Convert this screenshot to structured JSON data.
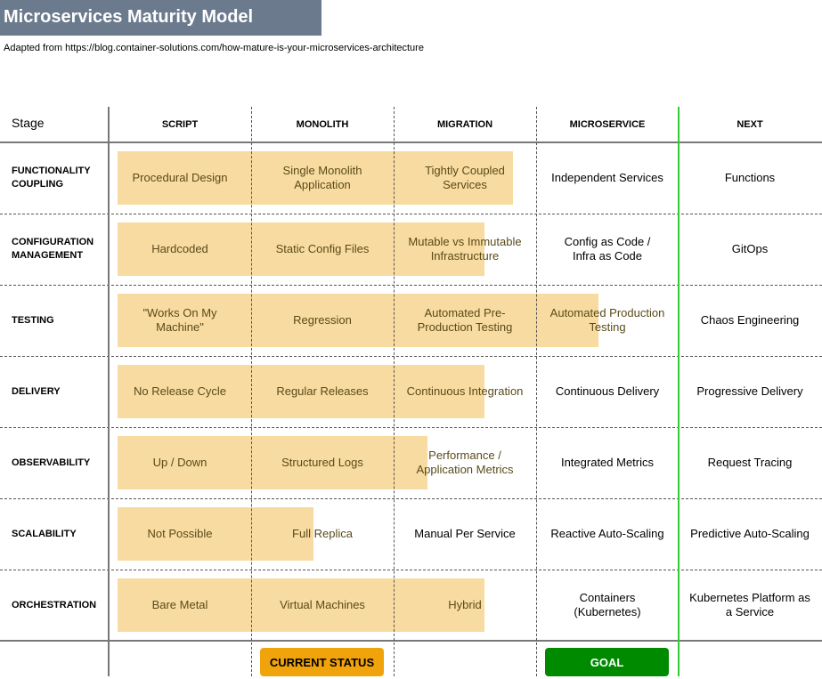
{
  "title": "Microservices Maturity Model",
  "subtitle": "Adapted from https://blog.container-solutions.com/how-mature-is-your-microservices-architecture",
  "stage_header": "Stage",
  "columns": [
    "SCRIPT",
    "MONOLITH",
    "MIGRATION",
    "MICROSERVICE",
    "NEXT"
  ],
  "rows": [
    {
      "label": "FUNCTIONALITY\nCOUPLING",
      "cells": [
        "Procedural Design",
        "Single Monolith\nApplication",
        "Tightly Coupled\nServices",
        "Independent Services",
        "Functions"
      ]
    },
    {
      "label": "CONFIGURATION\nMANAGEMENT",
      "cells": [
        "Hardcoded",
        "Static Config Files",
        "Mutable vs Immutable\nInfrastructure",
        "Config as Code /\nInfra as Code",
        "GitOps"
      ]
    },
    {
      "label": "TESTING",
      "cells": [
        "\"Works On My\nMachine\"",
        "Regression",
        "Automated Pre-\nProduction Testing",
        "Automated Production\nTesting",
        "Chaos Engineering"
      ]
    },
    {
      "label": "DELIVERY",
      "cells": [
        "No Release Cycle",
        "Regular Releases",
        "Continuous Integration",
        "Continuous Delivery",
        "Progressive Delivery"
      ]
    },
    {
      "label": "OBSERVABILITY",
      "cells": [
        "Up / Down",
        "Structured Logs",
        "Performance /\nApplication Metrics",
        "Integrated Metrics",
        "Request Tracing"
      ]
    },
    {
      "label": "SCALABILITY",
      "cells": [
        "Not Possible",
        "Full Replica",
        "Manual Per Service",
        "Reactive Auto-Scaling",
        "Predictive Auto-Scaling"
      ]
    },
    {
      "label": "ORCHESTRATION",
      "cells": [
        "Bare Metal",
        "Virtual Machines",
        "Hybrid",
        "Containers\n(Kubernetes)",
        "Kubernetes Platform as\na Service"
      ]
    }
  ],
  "current_status": [
    2.9,
    2.7,
    3.5,
    2.7,
    2.3,
    1.5,
    2.7
  ],
  "legend": {
    "current": "CURRENT STATUS",
    "goal": "GOAL"
  },
  "colors": {
    "title_bg": "#6b7b8d",
    "status_fill": "#f8dba0",
    "current_button": "#f0a30a",
    "goal_button": "#008a00",
    "goal_line": "#33cc33"
  }
}
